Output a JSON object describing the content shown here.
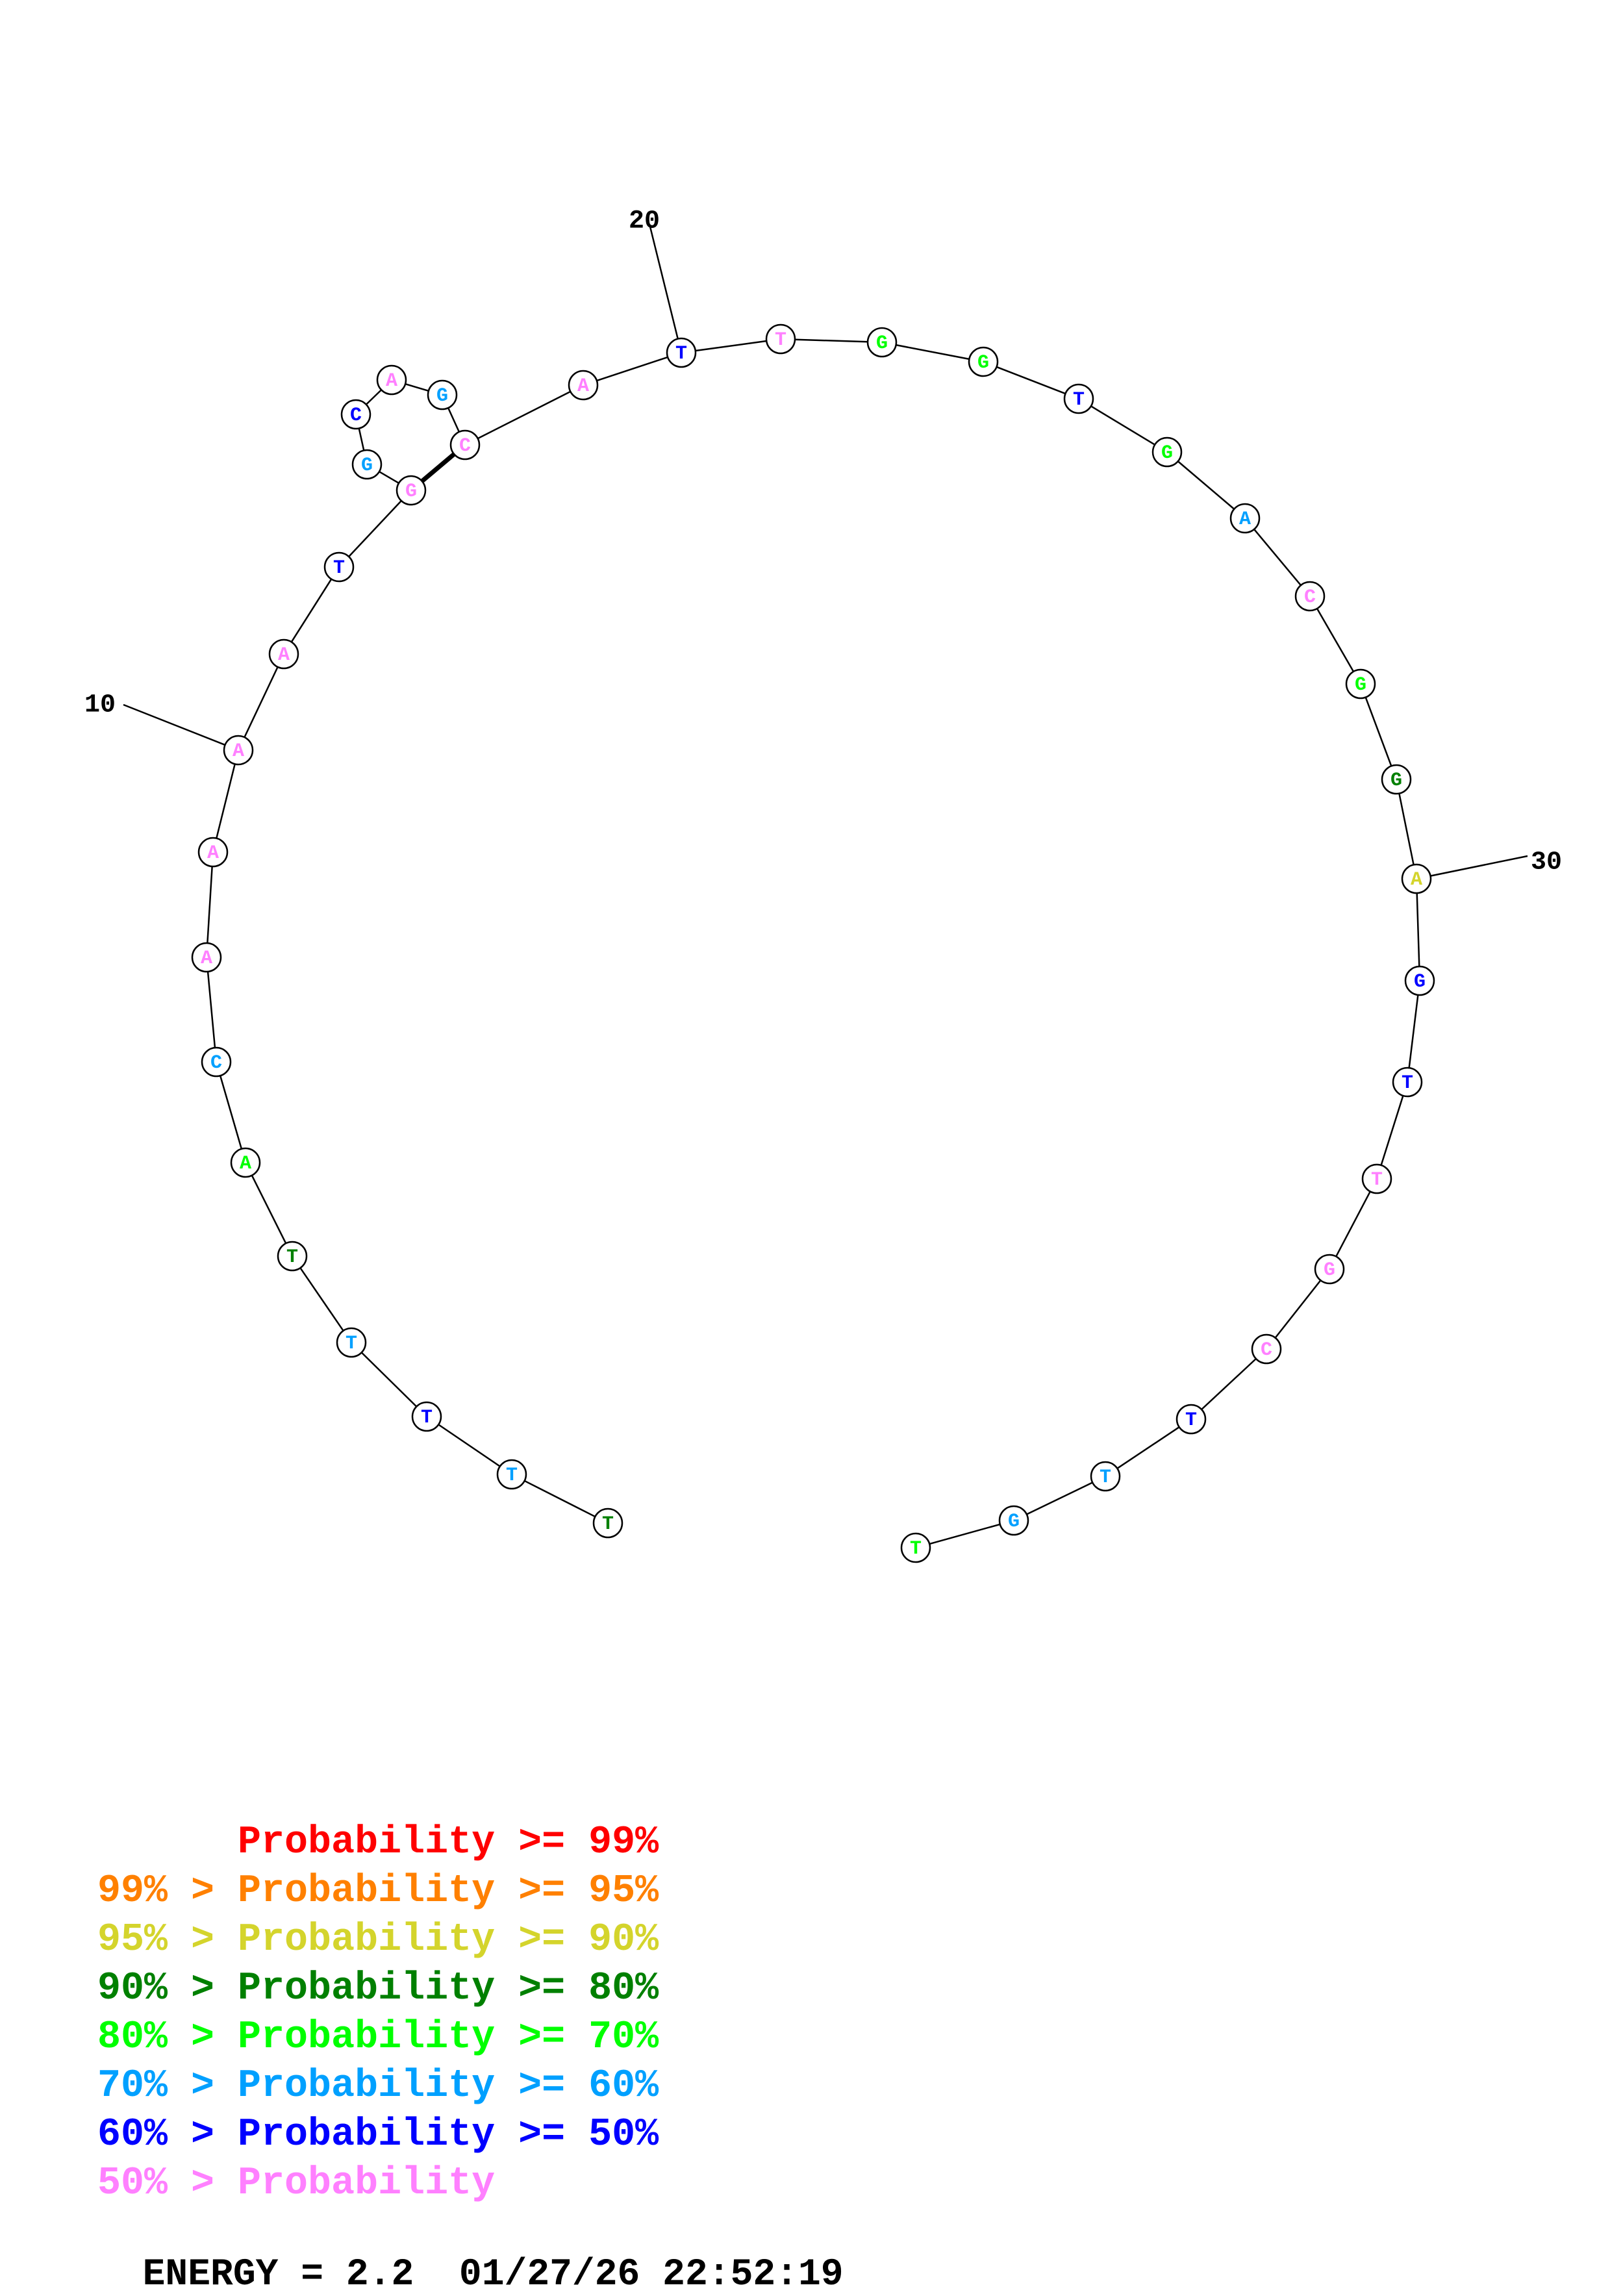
{
  "palette": {
    "p99": "#ff0000",
    "p95": "#ff8000",
    "p90": "#d4d42c",
    "p80": "#008000",
    "p70": "#00ff00",
    "p60": "#00a0ff",
    "p50": "#0000ff",
    "p00": "#ff80ff"
  },
  "sequence": [
    {
      "base": "T",
      "tier": "p80"
    },
    {
      "base": "T",
      "tier": "p60"
    },
    {
      "base": "T",
      "tier": "p50"
    },
    {
      "base": "T",
      "tier": "p60"
    },
    {
      "base": "T",
      "tier": "p80"
    },
    {
      "base": "A",
      "tier": "p70"
    },
    {
      "base": "C",
      "tier": "p60"
    },
    {
      "base": "A",
      "tier": "p00"
    },
    {
      "base": "A",
      "tier": "p00"
    },
    {
      "base": "A",
      "tier": "p00"
    },
    {
      "base": "A",
      "tier": "p00"
    },
    {
      "base": "T",
      "tier": "p50"
    },
    {
      "base": "G",
      "tier": "p00"
    },
    {
      "base": "G",
      "tier": "p60"
    },
    {
      "base": "C",
      "tier": "p50"
    },
    {
      "base": "A",
      "tier": "p00"
    },
    {
      "base": "G",
      "tier": "p60"
    },
    {
      "base": "C",
      "tier": "p00"
    },
    {
      "base": "A",
      "tier": "p00"
    },
    {
      "base": "T",
      "tier": "p50"
    },
    {
      "base": "T",
      "tier": "p00"
    },
    {
      "base": "G",
      "tier": "p70"
    },
    {
      "base": "G",
      "tier": "p70"
    },
    {
      "base": "T",
      "tier": "p50"
    },
    {
      "base": "G",
      "tier": "p70"
    },
    {
      "base": "A",
      "tier": "p60"
    },
    {
      "base": "C",
      "tier": "p00"
    },
    {
      "base": "G",
      "tier": "p70"
    },
    {
      "base": "G",
      "tier": "p80"
    },
    {
      "base": "A",
      "tier": "p90"
    },
    {
      "base": "G",
      "tier": "p50"
    },
    {
      "base": "T",
      "tier": "p50"
    },
    {
      "base": "T",
      "tier": "p00"
    },
    {
      "base": "G",
      "tier": "p00"
    },
    {
      "base": "C",
      "tier": "p00"
    },
    {
      "base": "T",
      "tier": "p50"
    },
    {
      "base": "T",
      "tier": "p60"
    },
    {
      "base": "G",
      "tier": "p60"
    },
    {
      "base": "T",
      "tier": "p70"
    }
  ],
  "pairs": [
    [
      13,
      18
    ]
  ],
  "index_labels": [
    {
      "index": 10,
      "label": "10"
    },
    {
      "index": 20,
      "label": "20"
    },
    {
      "index": 30,
      "label": "30"
    }
  ],
  "legend": [
    {
      "text": "      Probability >= 99%",
      "tier": "p99"
    },
    {
      "text": "99% > Probability >= 95%",
      "tier": "p95"
    },
    {
      "text": "95% > Probability >= 90%",
      "tier": "p90"
    },
    {
      "text": "90% > Probability >= 80%",
      "tier": "p80"
    },
    {
      "text": "80% > Probability >= 70%",
      "tier": "p70"
    },
    {
      "text": "70% > Probability >= 60%",
      "tier": "p60"
    },
    {
      "text": "60% > Probability >= 50%",
      "tier": "p50"
    },
    {
      "text": "50% > Probability",
      "tier": "p00"
    }
  ],
  "footer": {
    "energy": "ENERGY = 2.2  01/27/26 22:52:19"
  }
}
